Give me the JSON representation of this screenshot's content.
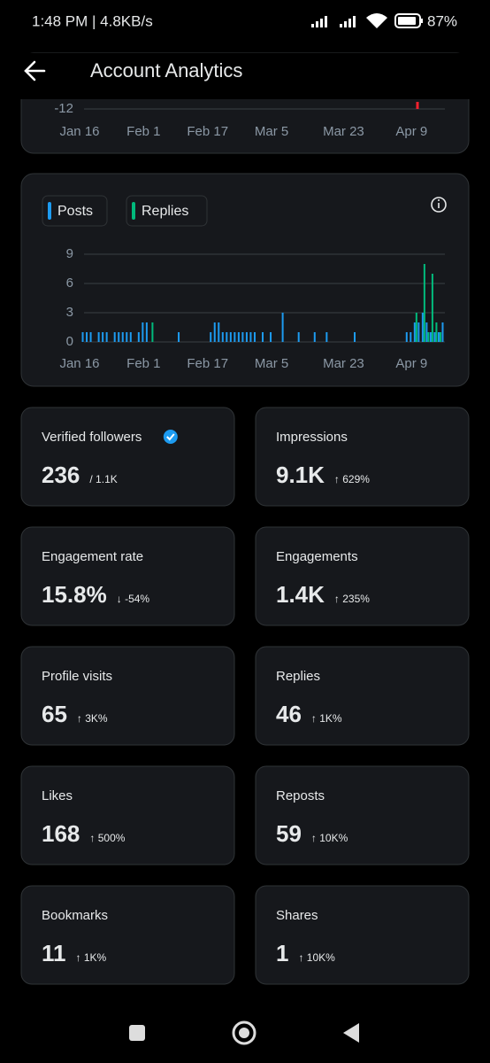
{
  "status_bar": {
    "time": "1:48 PM | 4.8KB/s",
    "battery": "87%"
  },
  "header": {
    "title": "Account Analytics"
  },
  "top_chart": {
    "type": "bar",
    "yticks": [
      -12
    ],
    "xticks": [
      {
        "value": 0,
        "label": "Jan 16"
      },
      {
        "value": 16,
        "label": "Feb 1"
      },
      {
        "value": 32,
        "label": "Feb 17"
      },
      {
        "value": 48,
        "label": "Mar 5"
      },
      {
        "value": 66,
        "label": "Mar 23"
      },
      {
        "value": 83,
        "label": "Apr 9"
      }
    ],
    "xlim": [
      0,
      92
    ]
  },
  "chart_data": {
    "type": "bar",
    "legend": true,
    "xlim": [
      0,
      92
    ],
    "ylim": [
      0,
      10
    ],
    "yticks": [
      0,
      3,
      6,
      9
    ],
    "grid": true,
    "xticks": [
      {
        "value": 0,
        "label": "Jan 16"
      },
      {
        "value": 16,
        "label": "Feb 1"
      },
      {
        "value": 32,
        "label": "Feb 17"
      },
      {
        "value": 48,
        "label": "Mar 5"
      },
      {
        "value": 66,
        "label": "Mar 23"
      },
      {
        "value": 83,
        "label": "Apr 9"
      }
    ],
    "series": [
      {
        "name": "Posts",
        "color": "#1d9bf0",
        "x": [
          1,
          2,
          3,
          5,
          6,
          7,
          9,
          10,
          11,
          12,
          13,
          15,
          16,
          17,
          25,
          33,
          34,
          35,
          36,
          37,
          38,
          39,
          40,
          41,
          42,
          43,
          44,
          46,
          48,
          51,
          55,
          59,
          62,
          69,
          82,
          83,
          84,
          85,
          86,
          87,
          88,
          89,
          90,
          91
        ],
        "values": [
          1,
          1,
          1,
          1,
          1,
          1,
          1,
          1,
          1,
          1,
          1,
          1,
          2,
          2,
          1,
          1,
          2,
          2,
          1,
          1,
          1,
          1,
          1,
          1,
          1,
          1,
          1,
          1,
          1,
          3,
          1,
          1,
          1,
          1,
          1,
          1,
          2,
          2,
          3,
          2,
          1,
          1,
          1,
          2
        ]
      },
      {
        "name": "Replies",
        "color": "#00ba7c",
        "x": [
          18,
          84,
          86,
          87,
          88,
          89,
          90
        ],
        "values": [
          2,
          3,
          8,
          1,
          7,
          2,
          1
        ]
      }
    ]
  },
  "metrics": [
    {
      "label": "Verified followers",
      "value": "236",
      "total": "/ 1.1K",
      "verified": true
    },
    {
      "label": "Impressions",
      "value": "9.1K",
      "change": "↑ 629%",
      "trend": "up"
    },
    {
      "label": "Engagement rate",
      "value": "15.8%",
      "change": "↓ -54%",
      "trend": "down"
    },
    {
      "label": "Engagements",
      "value": "1.4K",
      "change": "↑ 235%",
      "trend": "up"
    },
    {
      "label": "Profile visits",
      "value": "65",
      "change": "↑ 3K%",
      "trend": "up"
    },
    {
      "label": "Replies",
      "value": "46",
      "change": "↑ 1K%",
      "trend": "up"
    },
    {
      "label": "Likes",
      "value": "168",
      "change": "↑ 500%",
      "trend": "up"
    },
    {
      "label": "Reposts",
      "value": "59",
      "change": "↑ 10K%",
      "trend": "up"
    },
    {
      "label": "Bookmarks",
      "value": "11",
      "change": "↑ 1K%",
      "trend": "up"
    },
    {
      "label": "Shares",
      "value": "1",
      "change": "↑ 10K%",
      "trend": "up"
    }
  ]
}
